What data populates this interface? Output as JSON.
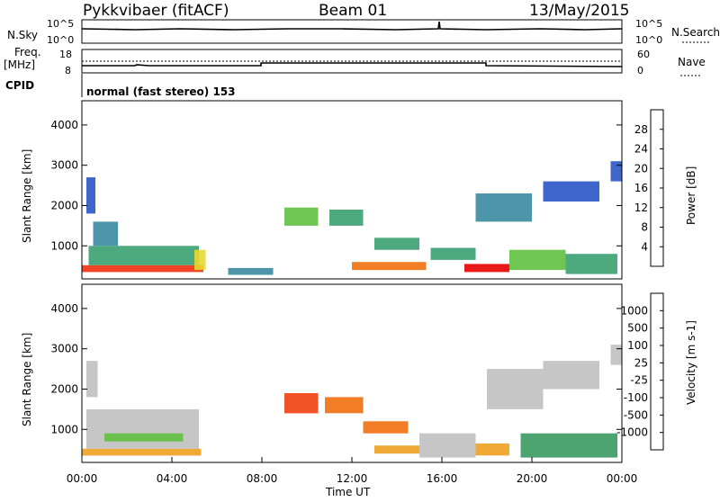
{
  "header": {
    "radar": "Pykkvibaer (fitACF)",
    "beam": "Beam 01",
    "date": "13/May/2015"
  },
  "top_panels": {
    "nsky_label": "N.Sky",
    "nsearch_label": "N.Search",
    "nsky_ticks": [
      "10^5",
      "10^0"
    ],
    "freq_label_line1": "Freq.",
    "freq_label_line2": "[MHz]",
    "freq_ticks": [
      "18",
      "8"
    ],
    "nave_label": "Nave",
    "nave_ticks": [
      "60",
      "0"
    ],
    "cpid_label": "CPID",
    "cpid_text": "normal (fast stereo) 153"
  },
  "chart_data": [
    {
      "type": "heatmap",
      "name": "power",
      "ylabel": "Slant Range [km]",
      "x_range_hours": [
        0,
        24
      ],
      "ylim": [
        180,
        4600
      ],
      "y_ticks": [
        1000,
        2000,
        3000,
        4000
      ],
      "colorbar": {
        "label": "Power [dB]",
        "ticks": [
          "28",
          "24",
          "20",
          "16",
          "12",
          "8",
          "4"
        ],
        "colors": [
          "#0033ff",
          "#2a55c8",
          "#3a8aa0",
          "#3aa070",
          "#60c040",
          "#e8d830",
          "#f0a020",
          "#f07010",
          "#f03010",
          "#e80000"
        ]
      },
      "blobs": [
        {
          "t0": 0.0,
          "t1": 5.4,
          "r0": 350,
          "r1": 520,
          "c": 8
        },
        {
          "t0": 0.3,
          "t1": 5.2,
          "r0": 520,
          "r1": 1000,
          "c": 3
        },
        {
          "t0": 0.5,
          "t1": 1.6,
          "r0": 1000,
          "r1": 1600,
          "c": 2
        },
        {
          "t0": 0.2,
          "t1": 0.6,
          "r0": 1800,
          "r1": 2700,
          "c": 1
        },
        {
          "t0": 5.0,
          "t1": 5.5,
          "r0": 400,
          "r1": 900,
          "c": 5
        },
        {
          "t0": 6.5,
          "t1": 8.5,
          "r0": 280,
          "r1": 450,
          "c": 2
        },
        {
          "t0": 9.0,
          "t1": 10.5,
          "r0": 1500,
          "r1": 1950,
          "c": 4
        },
        {
          "t0": 11.0,
          "t1": 12.5,
          "r0": 1500,
          "r1": 1900,
          "c": 3
        },
        {
          "t0": 13.0,
          "t1": 15.0,
          "r0": 900,
          "r1": 1200,
          "c": 3
        },
        {
          "t0": 12.0,
          "t1": 15.3,
          "r0": 400,
          "r1": 600,
          "c": 7
        },
        {
          "t0": 15.5,
          "t1": 17.5,
          "r0": 650,
          "r1": 950,
          "c": 3
        },
        {
          "t0": 17.0,
          "t1": 19.0,
          "r0": 350,
          "r1": 550,
          "c": 9
        },
        {
          "t0": 19.0,
          "t1": 21.5,
          "r0": 400,
          "r1": 900,
          "c": 4
        },
        {
          "t0": 17.5,
          "t1": 20.0,
          "r0": 1600,
          "r1": 2300,
          "c": 2
        },
        {
          "t0": 20.5,
          "t1": 23.0,
          "r0": 2100,
          "r1": 2600,
          "c": 1
        },
        {
          "t0": 23.5,
          "t1": 24.0,
          "r0": 2600,
          "r1": 3100,
          "c": 1
        },
        {
          "t0": 21.5,
          "t1": 23.8,
          "r0": 300,
          "r1": 800,
          "c": 3
        }
      ]
    },
    {
      "type": "heatmap",
      "name": "velocity",
      "ylabel": "Slant Range [km]",
      "xlabel": "Time UT",
      "x_range_hours": [
        0,
        24
      ],
      "x_ticks": [
        "00:00",
        "04:00",
        "08:00",
        "12:00",
        "16:00",
        "20:00",
        "00:00"
      ],
      "ylim": [
        180,
        4600
      ],
      "y_ticks": [
        1000,
        2000,
        3000,
        4000
      ],
      "colorbar": {
        "label": "Velocity [m s-1]",
        "ticks": [
          "1000",
          "500",
          "100",
          "25",
          "-25",
          "-100",
          "-500",
          "-1000"
        ],
        "colors": [
          "#ff0000",
          "#f04010",
          "#f07010",
          "#f0a020",
          "#c0c0c0",
          "#b8b8b8",
          "#60c040",
          "#3a9a60",
          "#2a7aa0",
          "#2a4ac8"
        ]
      },
      "blobs": [
        {
          "t0": 0.0,
          "t1": 5.3,
          "r0": 350,
          "r1": 520,
          "c": 3
        },
        {
          "t0": 0.2,
          "t1": 5.2,
          "r0": 520,
          "r1": 1500,
          "c": 4
        },
        {
          "t0": 0.2,
          "t1": 0.7,
          "r0": 1800,
          "r1": 2700,
          "c": 4
        },
        {
          "t0": 1.0,
          "t1": 4.5,
          "r0": 700,
          "r1": 900,
          "c": 6
        },
        {
          "t0": 9.0,
          "t1": 10.5,
          "r0": 1400,
          "r1": 1900,
          "c": 1
        },
        {
          "t0": 10.8,
          "t1": 12.5,
          "r0": 1400,
          "r1": 1800,
          "c": 2
        },
        {
          "t0": 12.5,
          "t1": 14.5,
          "r0": 900,
          "r1": 1200,
          "c": 2
        },
        {
          "t0": 13.0,
          "t1": 15.0,
          "r0": 400,
          "r1": 600,
          "c": 3
        },
        {
          "t0": 15.0,
          "t1": 17.5,
          "r0": 300,
          "r1": 900,
          "c": 4
        },
        {
          "t0": 17.5,
          "t1": 19.0,
          "r0": 350,
          "r1": 650,
          "c": 3
        },
        {
          "t0": 18.0,
          "t1": 20.5,
          "r0": 1500,
          "r1": 2500,
          "c": 4
        },
        {
          "t0": 20.5,
          "t1": 23.0,
          "r0": 2000,
          "r1": 2700,
          "c": 4
        },
        {
          "t0": 19.5,
          "t1": 23.8,
          "r0": 300,
          "r1": 900,
          "c": 7
        },
        {
          "t0": 23.5,
          "t1": 24.0,
          "r0": 2600,
          "r1": 3100,
          "c": 4
        }
      ]
    }
  ]
}
